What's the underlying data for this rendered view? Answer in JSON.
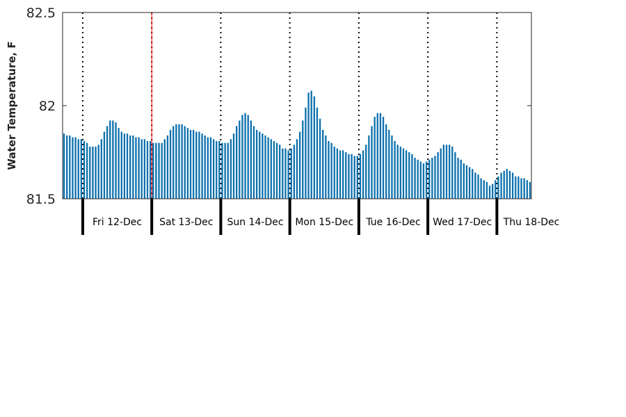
{
  "chart_data": {
    "type": "bar",
    "title": "",
    "xlabel": "",
    "ylabel": "Water Temperature, F",
    "ylim": [
      81.5,
      82.5
    ],
    "yticks": [
      "81.5",
      "82",
      "82.5"
    ],
    "days": [
      "Fri 12-Dec",
      "Sat 13-Dec",
      "Sun 14-Dec",
      "Mon 15-Dec",
      "Tue 16-Dec",
      "Wed 17-Dec",
      "Thu 18-Dec"
    ],
    "hours_before_first_day": 7,
    "current_time_hour_offset": 31,
    "grid": false,
    "legend": "none",
    "series": [
      {
        "values": [
          81.85,
          81.84,
          81.84,
          81.83,
          81.83,
          81.82,
          81.82,
          81.81,
          81.8,
          81.78,
          81.78,
          81.78,
          81.79,
          81.82,
          81.86,
          81.89,
          81.92,
          81.92,
          81.91,
          81.88,
          81.86,
          81.85,
          81.85,
          81.84,
          81.84,
          81.83,
          81.83,
          81.82,
          81.82,
          81.81,
          81.81,
          81.8,
          81.8,
          81.8,
          81.8,
          81.82,
          81.84,
          81.87,
          81.89,
          81.9,
          81.9,
          81.9,
          81.89,
          81.88,
          81.87,
          81.87,
          81.86,
          81.86,
          81.85,
          81.84,
          81.83,
          81.83,
          81.82,
          81.81,
          81.81,
          81.8,
          81.8,
          81.8,
          81.82,
          81.85,
          81.89,
          81.92,
          81.95,
          81.96,
          81.95,
          81.92,
          81.89,
          81.87,
          81.86,
          81.85,
          81.84,
          81.83,
          81.82,
          81.81,
          81.8,
          81.79,
          81.77,
          81.77,
          81.76,
          81.77,
          81.79,
          81.82,
          81.86,
          81.92,
          81.99,
          82.07,
          82.08,
          82.05,
          81.99,
          81.93,
          81.87,
          81.84,
          81.81,
          81.8,
          81.78,
          81.77,
          81.76,
          81.76,
          81.75,
          81.74,
          81.74,
          81.73,
          81.73,
          81.74,
          81.76,
          81.79,
          81.84,
          81.89,
          81.94,
          81.96,
          81.96,
          81.94,
          81.9,
          81.87,
          81.84,
          81.81,
          81.79,
          81.78,
          81.77,
          81.76,
          81.75,
          81.74,
          81.72,
          81.71,
          81.7,
          81.69,
          81.7,
          81.71,
          81.72,
          81.73,
          81.75,
          81.77,
          81.79,
          81.79,
          81.79,
          81.78,
          81.75,
          81.72,
          81.71,
          81.69,
          81.68,
          81.67,
          81.66,
          81.64,
          81.63,
          81.61,
          81.6,
          81.59,
          81.57,
          81.58,
          81.6,
          81.62,
          81.64,
          81.65,
          81.66,
          81.65,
          81.64,
          81.62,
          81.62,
          81.61,
          81.61,
          81.6,
          81.59
        ]
      }
    ],
    "colors": {
      "bar": "#0c70ad",
      "current_time": "#ff0000",
      "day_divider": "#000000"
    }
  }
}
